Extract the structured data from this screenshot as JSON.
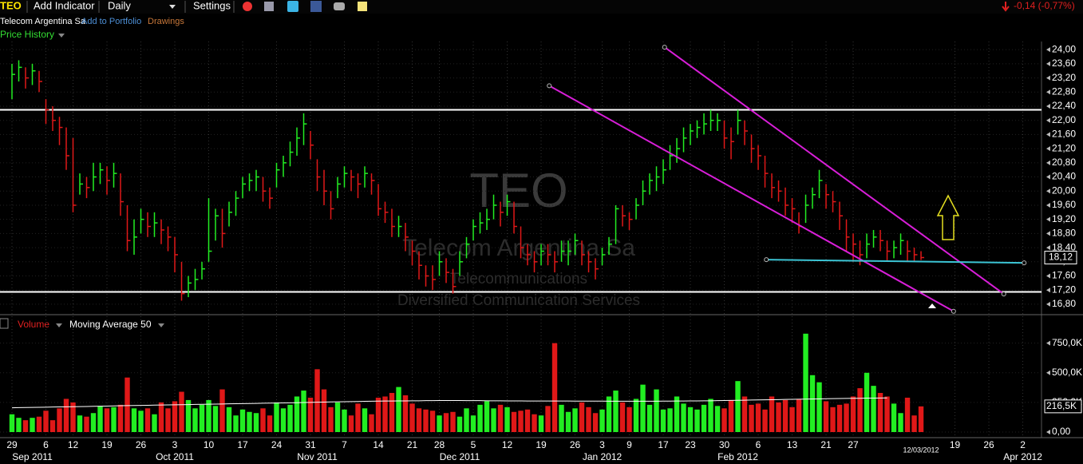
{
  "toolbar": {
    "symbol": "TEO",
    "add_indicator": "Add Indicator",
    "interval": "Daily",
    "settings": "Settings",
    "company": "Telecom Argentina Sa",
    "add_to_portfolio": "Add to Portfolio",
    "drawings": "Drawings",
    "change": "-0,14 (-0,77%)"
  },
  "chart_data": [
    {
      "type": "ohlc",
      "title": "Price History",
      "watermark": [
        "TEO",
        "Telecom Argentina Sa",
        "Telecommunications",
        "Diversified Communication Services"
      ],
      "up_color": "#22ee22",
      "down_color": "#e01818",
      "high": [
        23.6,
        23.7,
        23.5,
        23.6,
        23.4,
        22.6,
        22.4,
        22.1,
        21.8,
        21.5,
        20.5,
        20.4,
        20.8,
        20.8,
        20.7,
        20.8,
        20.5,
        19.6,
        19.2,
        19.5,
        19.4,
        19.4,
        19.2,
        19.0,
        18.7,
        18.0,
        17.6,
        17.8,
        18.0,
        19.8,
        19.5,
        19.5,
        19.7,
        20.0,
        20.4,
        20.5,
        20.6,
        20.4,
        20.1,
        20.8,
        21.0,
        21.4,
        21.8,
        22.2,
        21.7,
        20.9,
        20.6,
        20.0,
        20.4,
        20.7,
        20.6,
        20.5,
        20.7,
        20.5,
        20.2,
        19.7,
        19.5,
        19.3,
        19.1,
        18.6,
        18.3,
        17.9,
        17.9,
        18.3,
        18.1,
        17.8,
        18.3,
        18.7,
        19.2,
        19.4,
        19.5,
        19.9,
        19.7,
        19.9,
        19.7,
        19.0,
        18.5,
        18.3,
        18.5,
        18.5,
        18.3,
        18.6,
        18.6,
        18.8,
        18.6,
        18.3,
        18.1,
        18.4,
        18.7,
        19.6,
        19.6,
        19.4,
        19.8,
        20.3,
        20.5,
        20.7,
        20.9,
        21.3,
        21.5,
        21.8,
        21.9,
        22.0,
        22.2,
        22.3,
        22.2,
        22.0,
        21.8,
        22.3,
        22.0,
        21.6,
        21.3,
        21.0,
        20.5,
        20.3,
        20.1,
        19.8,
        19.4,
        19.9,
        20.1,
        20.6,
        20.2,
        20.0,
        19.7,
        19.2,
        18.8,
        18.6,
        18.8,
        18.9,
        18.9,
        18.6,
        18.6,
        18.8,
        18.6,
        18.4,
        18.3
      ],
      "low": [
        22.6,
        23.1,
        22.9,
        23.0,
        22.8,
        21.9,
        21.7,
        21.3,
        20.6,
        19.4,
        19.9,
        19.8,
        20.0,
        20.2,
        19.9,
        20.1,
        19.3,
        18.3,
        18.2,
        18.8,
        18.7,
        18.7,
        18.5,
        18.3,
        17.7,
        16.9,
        17.0,
        17.2,
        17.5,
        18.0,
        18.6,
        18.4,
        19.0,
        19.3,
        19.8,
        20.0,
        20.0,
        19.7,
        19.5,
        20.1,
        20.4,
        20.7,
        21.0,
        21.3,
        20.9,
        20.0,
        19.6,
        19.2,
        19.8,
        20.1,
        20.0,
        19.8,
        20.1,
        19.9,
        19.3,
        19.1,
        18.7,
        18.7,
        18.3,
        17.9,
        17.5,
        17.3,
        17.2,
        17.6,
        17.4,
        17.1,
        17.6,
        18.1,
        18.6,
        18.8,
        18.9,
        19.2,
        19.0,
        19.3,
        18.8,
        18.1,
        17.9,
        17.7,
        17.9,
        17.9,
        17.7,
        18.0,
        17.9,
        18.2,
        17.9,
        17.7,
        17.5,
        17.9,
        18.2,
        18.5,
        19.0,
        18.9,
        19.2,
        19.6,
        19.9,
        20.0,
        20.2,
        20.6,
        20.8,
        21.1,
        21.3,
        21.5,
        21.6,
        21.7,
        21.7,
        21.2,
        20.9,
        21.6,
        21.3,
        20.8,
        20.6,
        20.1,
        19.8,
        19.7,
        19.3,
        19.1,
        18.8,
        19.1,
        19.5,
        19.8,
        19.5,
        19.4,
        18.9,
        18.3,
        18.0,
        17.9,
        18.1,
        18.4,
        18.3,
        18.0,
        18.1,
        18.2,
        18.0,
        18.0,
        18.05
      ],
      "close": [
        23.3,
        23.5,
        23.2,
        23.4,
        23.1,
        22.3,
        22.0,
        21.8,
        21.0,
        19.6,
        20.2,
        20.1,
        20.4,
        20.6,
        20.3,
        20.5,
        19.7,
        18.6,
        18.7,
        19.2,
        19.0,
        19.1,
        18.9,
        18.7,
        18.2,
        17.1,
        17.4,
        17.5,
        17.8,
        18.3,
        19.3,
        18.8,
        19.4,
        19.8,
        20.2,
        20.3,
        20.4,
        20.0,
        19.8,
        20.6,
        20.8,
        21.1,
        21.5,
        21.9,
        21.3,
        20.4,
        20.0,
        19.5,
        20.2,
        20.5,
        20.4,
        20.2,
        20.5,
        20.3,
        19.5,
        19.4,
        19.0,
        19.0,
        18.7,
        18.3,
        17.9,
        17.6,
        17.5,
        18.0,
        17.7,
        17.3,
        18.0,
        18.5,
        19.0,
        19.1,
        19.2,
        19.6,
        19.4,
        19.7,
        19.0,
        18.4,
        18.2,
        18.0,
        18.3,
        18.2,
        18.0,
        18.3,
        18.3,
        18.6,
        18.2,
        18.0,
        17.8,
        18.2,
        18.5,
        19.5,
        19.3,
        19.2,
        19.6,
        20.0,
        20.3,
        20.4,
        20.6,
        21.0,
        21.2,
        21.5,
        21.7,
        21.8,
        21.9,
        22.0,
        22.0,
        21.5,
        21.4,
        22.0,
        21.7,
        21.2,
        21.0,
        20.5,
        20.1,
        20.0,
        19.6,
        19.5,
        19.0,
        19.6,
        19.9,
        20.3,
        19.9,
        19.7,
        19.3,
        18.7,
        18.5,
        18.2,
        18.5,
        18.7,
        18.6,
        18.3,
        18.4,
        18.6,
        18.3,
        18.2,
        18.12
      ],
      "xlim": [
        -1.765,
        151.76
      ],
      "ylim": [
        16.55,
        24.23
      ],
      "yticks": [
        {
          "value": 16.8,
          "label": "16,80"
        },
        {
          "value": 17.2,
          "label": "17,20"
        },
        {
          "value": 17.6,
          "label": "17,60"
        },
        {
          "value": 18.0,
          "label": "18,00"
        },
        {
          "value": 18.4,
          "label": "18,40"
        },
        {
          "value": 18.8,
          "label": "18,80"
        },
        {
          "value": 19.2,
          "label": "19,20"
        },
        {
          "value": 19.6,
          "label": "19,60"
        },
        {
          "value": 20.0,
          "label": "20,00"
        },
        {
          "value": 20.4,
          "label": "20,40"
        },
        {
          "value": 20.8,
          "label": "20,80"
        },
        {
          "value": 21.2,
          "label": "21,20"
        },
        {
          "value": 21.6,
          "label": "21,60"
        },
        {
          "value": 22.0,
          "label": "22,00"
        },
        {
          "value": 22.4,
          "label": "22,40"
        },
        {
          "value": 22.8,
          "label": "22,80"
        },
        {
          "value": 23.2,
          "label": "23,20"
        },
        {
          "value": 23.6,
          "label": "23,60"
        },
        {
          "value": 24.0,
          "label": "24,00"
        }
      ],
      "xticks": [
        {
          "value": 0,
          "label": "29"
        },
        {
          "value": 5,
          "label": "6"
        },
        {
          "value": 9,
          "label": "12"
        },
        {
          "value": 14,
          "label": "19"
        },
        {
          "value": 19,
          "label": "26"
        },
        {
          "value": 24,
          "label": "3"
        },
        {
          "value": 29,
          "label": "10"
        },
        {
          "value": 34,
          "label": "17"
        },
        {
          "value": 39,
          "label": "24"
        },
        {
          "value": 44,
          "label": "31"
        },
        {
          "value": 49,
          "label": "7"
        },
        {
          "value": 54,
          "label": "14"
        },
        {
          "value": 59,
          "label": "21"
        },
        {
          "value": 63,
          "label": "28"
        },
        {
          "value": 68,
          "label": "5"
        },
        {
          "value": 73,
          "label": "12"
        },
        {
          "value": 78,
          "label": "19"
        },
        {
          "value": 83,
          "label": "26"
        },
        {
          "value": 87,
          "label": "3"
        },
        {
          "value": 91,
          "label": "9"
        },
        {
          "value": 96,
          "label": "17"
        },
        {
          "value": 100,
          "label": "23"
        },
        {
          "value": 105,
          "label": "30"
        },
        {
          "value": 110,
          "label": "6"
        },
        {
          "value": 115,
          "label": "13"
        },
        {
          "value": 120,
          "label": "21"
        },
        {
          "value": 124,
          "label": "27"
        },
        {
          "value": 139,
          "label": "19"
        },
        {
          "value": 144,
          "label": "26"
        },
        {
          "value": 149,
          "label": "2"
        }
      ],
      "month_labels": [
        {
          "value": 3,
          "label": "Sep 2011"
        },
        {
          "value": 24,
          "label": "Oct 2011"
        },
        {
          "value": 45,
          "label": "Nov 2011"
        },
        {
          "value": 66,
          "label": "Dec 2011"
        },
        {
          "value": 87,
          "label": "Jan 2012"
        },
        {
          "value": 107,
          "label": "Feb 2012"
        },
        {
          "value": 149,
          "label": "Apr 2012"
        }
      ],
      "date_label": {
        "value": 134,
        "label": "12/03/2012"
      },
      "last_value": {
        "value": 18.12,
        "label": "18,12"
      },
      "hlines": [
        22.3,
        17.15
      ],
      "hline_color": "#ffffff",
      "trendlines": [
        {
          "x": [
            96.2,
            146.2
          ],
          "y": [
            24.07,
            17.09
          ],
          "color": "#d81ed8"
        },
        {
          "x": [
            79.2,
            138.8
          ],
          "y": [
            22.98,
            16.6
          ],
          "color": "#d81ed8"
        },
        {
          "x": [
            111.2,
            149.2
          ],
          "y": [
            18.06,
            17.97
          ],
          "color": "#3cc4d4"
        }
      ]
    },
    {
      "type": "volume",
      "title": "Volume",
      "indicator": "Moving Average 50",
      "ma_color": "#ffffff",
      "values": [
        150,
        120,
        100,
        120,
        130,
        180,
        100,
        200,
        280,
        250,
        140,
        130,
        160,
        220,
        200,
        210,
        230,
        460,
        200,
        180,
        200,
        150,
        250,
        200,
        260,
        340,
        270,
        200,
        230,
        270,
        220,
        360,
        210,
        140,
        190,
        170,
        160,
        200,
        140,
        250,
        200,
        230,
        300,
        350,
        290,
        530,
        360,
        210,
        250,
        190,
        140,
        240,
        200,
        150,
        290,
        300,
        330,
        380,
        310,
        240,
        200,
        190,
        180,
        140,
        160,
        170,
        130,
        200,
        140,
        230,
        260,
        200,
        230,
        210,
        170,
        180,
        190,
        150,
        140,
        220,
        750,
        230,
        170,
        200,
        250,
        210,
        160,
        190,
        300,
        350,
        250,
        210,
        280,
        400,
        230,
        360,
        190,
        200,
        300,
        240,
        210,
        190,
        230,
        280,
        220,
        200,
        270,
        430,
        300,
        230,
        240,
        190,
        300,
        250,
        270,
        210,
        280,
        830,
        480,
        420,
        260,
        210,
        230,
        240,
        300,
        370,
        500,
        390,
        330,
        300,
        240,
        160,
        290,
        140,
        216.5
      ],
      "ma": [
        205,
        206,
        207,
        208,
        209,
        210,
        211,
        212,
        213,
        214,
        215,
        216,
        217,
        218,
        219,
        221,
        222,
        223,
        224,
        225,
        226,
        227,
        228,
        229,
        230,
        231,
        232,
        233,
        234,
        235,
        236,
        237,
        238,
        239,
        240,
        241,
        242,
        243,
        244,
        245,
        246,
        247,
        248,
        249,
        250,
        252,
        253,
        254,
        255,
        256,
        257,
        258,
        259,
        260,
        261,
        262,
        262,
        263,
        263,
        264,
        264,
        265,
        265,
        266,
        266,
        266,
        266,
        265,
        265,
        265,
        264,
        264,
        264,
        263,
        263,
        263,
        262,
        262,
        262,
        262,
        262,
        262,
        262,
        261,
        261,
        261,
        261,
        261,
        260,
        260,
        260,
        260,
        260,
        260,
        260,
        260,
        261,
        261,
        262,
        262,
        263,
        263,
        264,
        264,
        265,
        266,
        267,
        268,
        269,
        270,
        271,
        272,
        273,
        274,
        275,
        276,
        277,
        278,
        279,
        280,
        281,
        282,
        283,
        284,
        285,
        285,
        286,
        286,
        287,
        288
      ],
      "ylim": [
        0,
        950
      ],
      "yticks": [
        {
          "value": 0,
          "label": "0,00"
        },
        {
          "value": 250,
          "label": "250,0K"
        },
        {
          "value": 500,
          "label": "500,0K"
        },
        {
          "value": 750,
          "label": "750,0K"
        }
      ],
      "last_value": {
        "value": 216.5,
        "label": "216,5K"
      }
    }
  ]
}
